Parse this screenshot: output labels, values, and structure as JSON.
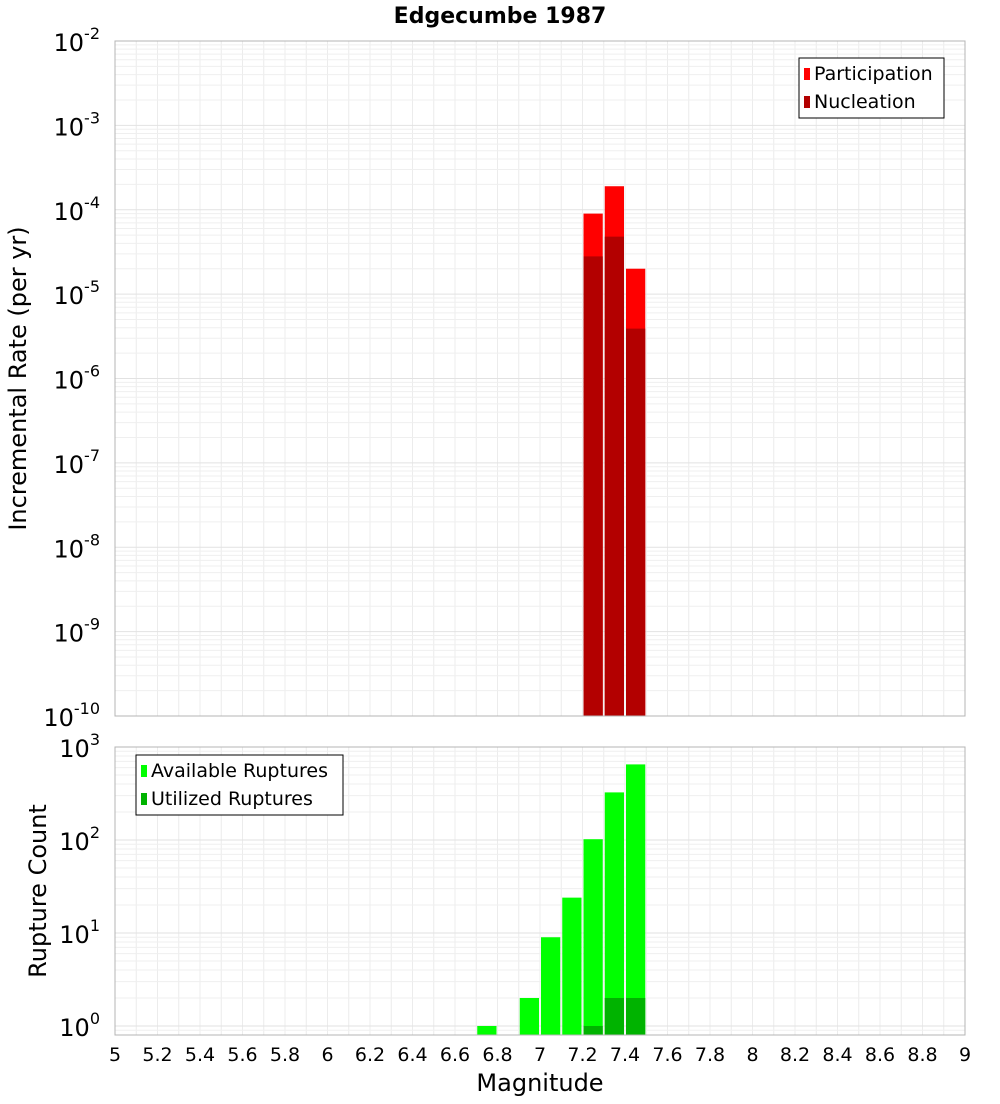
{
  "title": "Edgecumbe 1987",
  "chart_data": [
    {
      "type": "bar",
      "title": "Edgecumbe 1987",
      "xlabel": "Magnitude",
      "ylabel": "Incremental Rate (per yr)",
      "y_scale": "log",
      "xlim": [
        5,
        9
      ],
      "ylim": [
        1e-10,
        0.01
      ],
      "y_tick_exponents": [
        -10,
        -9,
        -8,
        -7,
        -6,
        -5,
        -4,
        -3,
        -2
      ],
      "grid": true,
      "legend_position": "top-right",
      "bar_width": 0.1,
      "series": [
        {
          "name": "Participation",
          "color": "#ff0000",
          "x": [
            7.25,
            7.35,
            7.45
          ],
          "values": [
            9e-05,
            0.00019,
            2e-05
          ]
        },
        {
          "name": "Nucleation",
          "color": "#b30000",
          "x": [
            7.25,
            7.35,
            7.45
          ],
          "values": [
            2.8e-05,
            4.8e-05,
            3.9e-06
          ]
        }
      ]
    },
    {
      "type": "bar",
      "xlabel": "Magnitude",
      "ylabel": "Rupture Count",
      "y_scale": "log",
      "xlim": [
        5,
        9
      ],
      "ylim": [
        0.8,
        1000
      ],
      "y_tick_exponents": [
        0,
        1,
        2,
        3
      ],
      "x_ticks": [
        "5",
        "5.2",
        "5.4",
        "5.6",
        "5.8",
        "6",
        "6.2",
        "6.4",
        "6.6",
        "6.8",
        "7",
        "7.2",
        "7.4",
        "7.6",
        "7.8",
        "8",
        "8.2",
        "8.4",
        "8.6",
        "8.8",
        "9"
      ],
      "grid": true,
      "legend_position": "top-left",
      "bar_width": 0.1,
      "series": [
        {
          "name": "Available Ruptures",
          "color": "#00ff00",
          "x": [
            6.75,
            6.95,
            7.05,
            7.15,
            7.25,
            7.35,
            7.45
          ],
          "values": [
            1,
            2,
            9,
            24,
            102,
            325,
            650
          ]
        },
        {
          "name": "Utilized Ruptures",
          "color": "#00b300",
          "x": [
            7.25,
            7.35,
            7.45
          ],
          "values": [
            1,
            2,
            2
          ]
        }
      ]
    }
  ]
}
